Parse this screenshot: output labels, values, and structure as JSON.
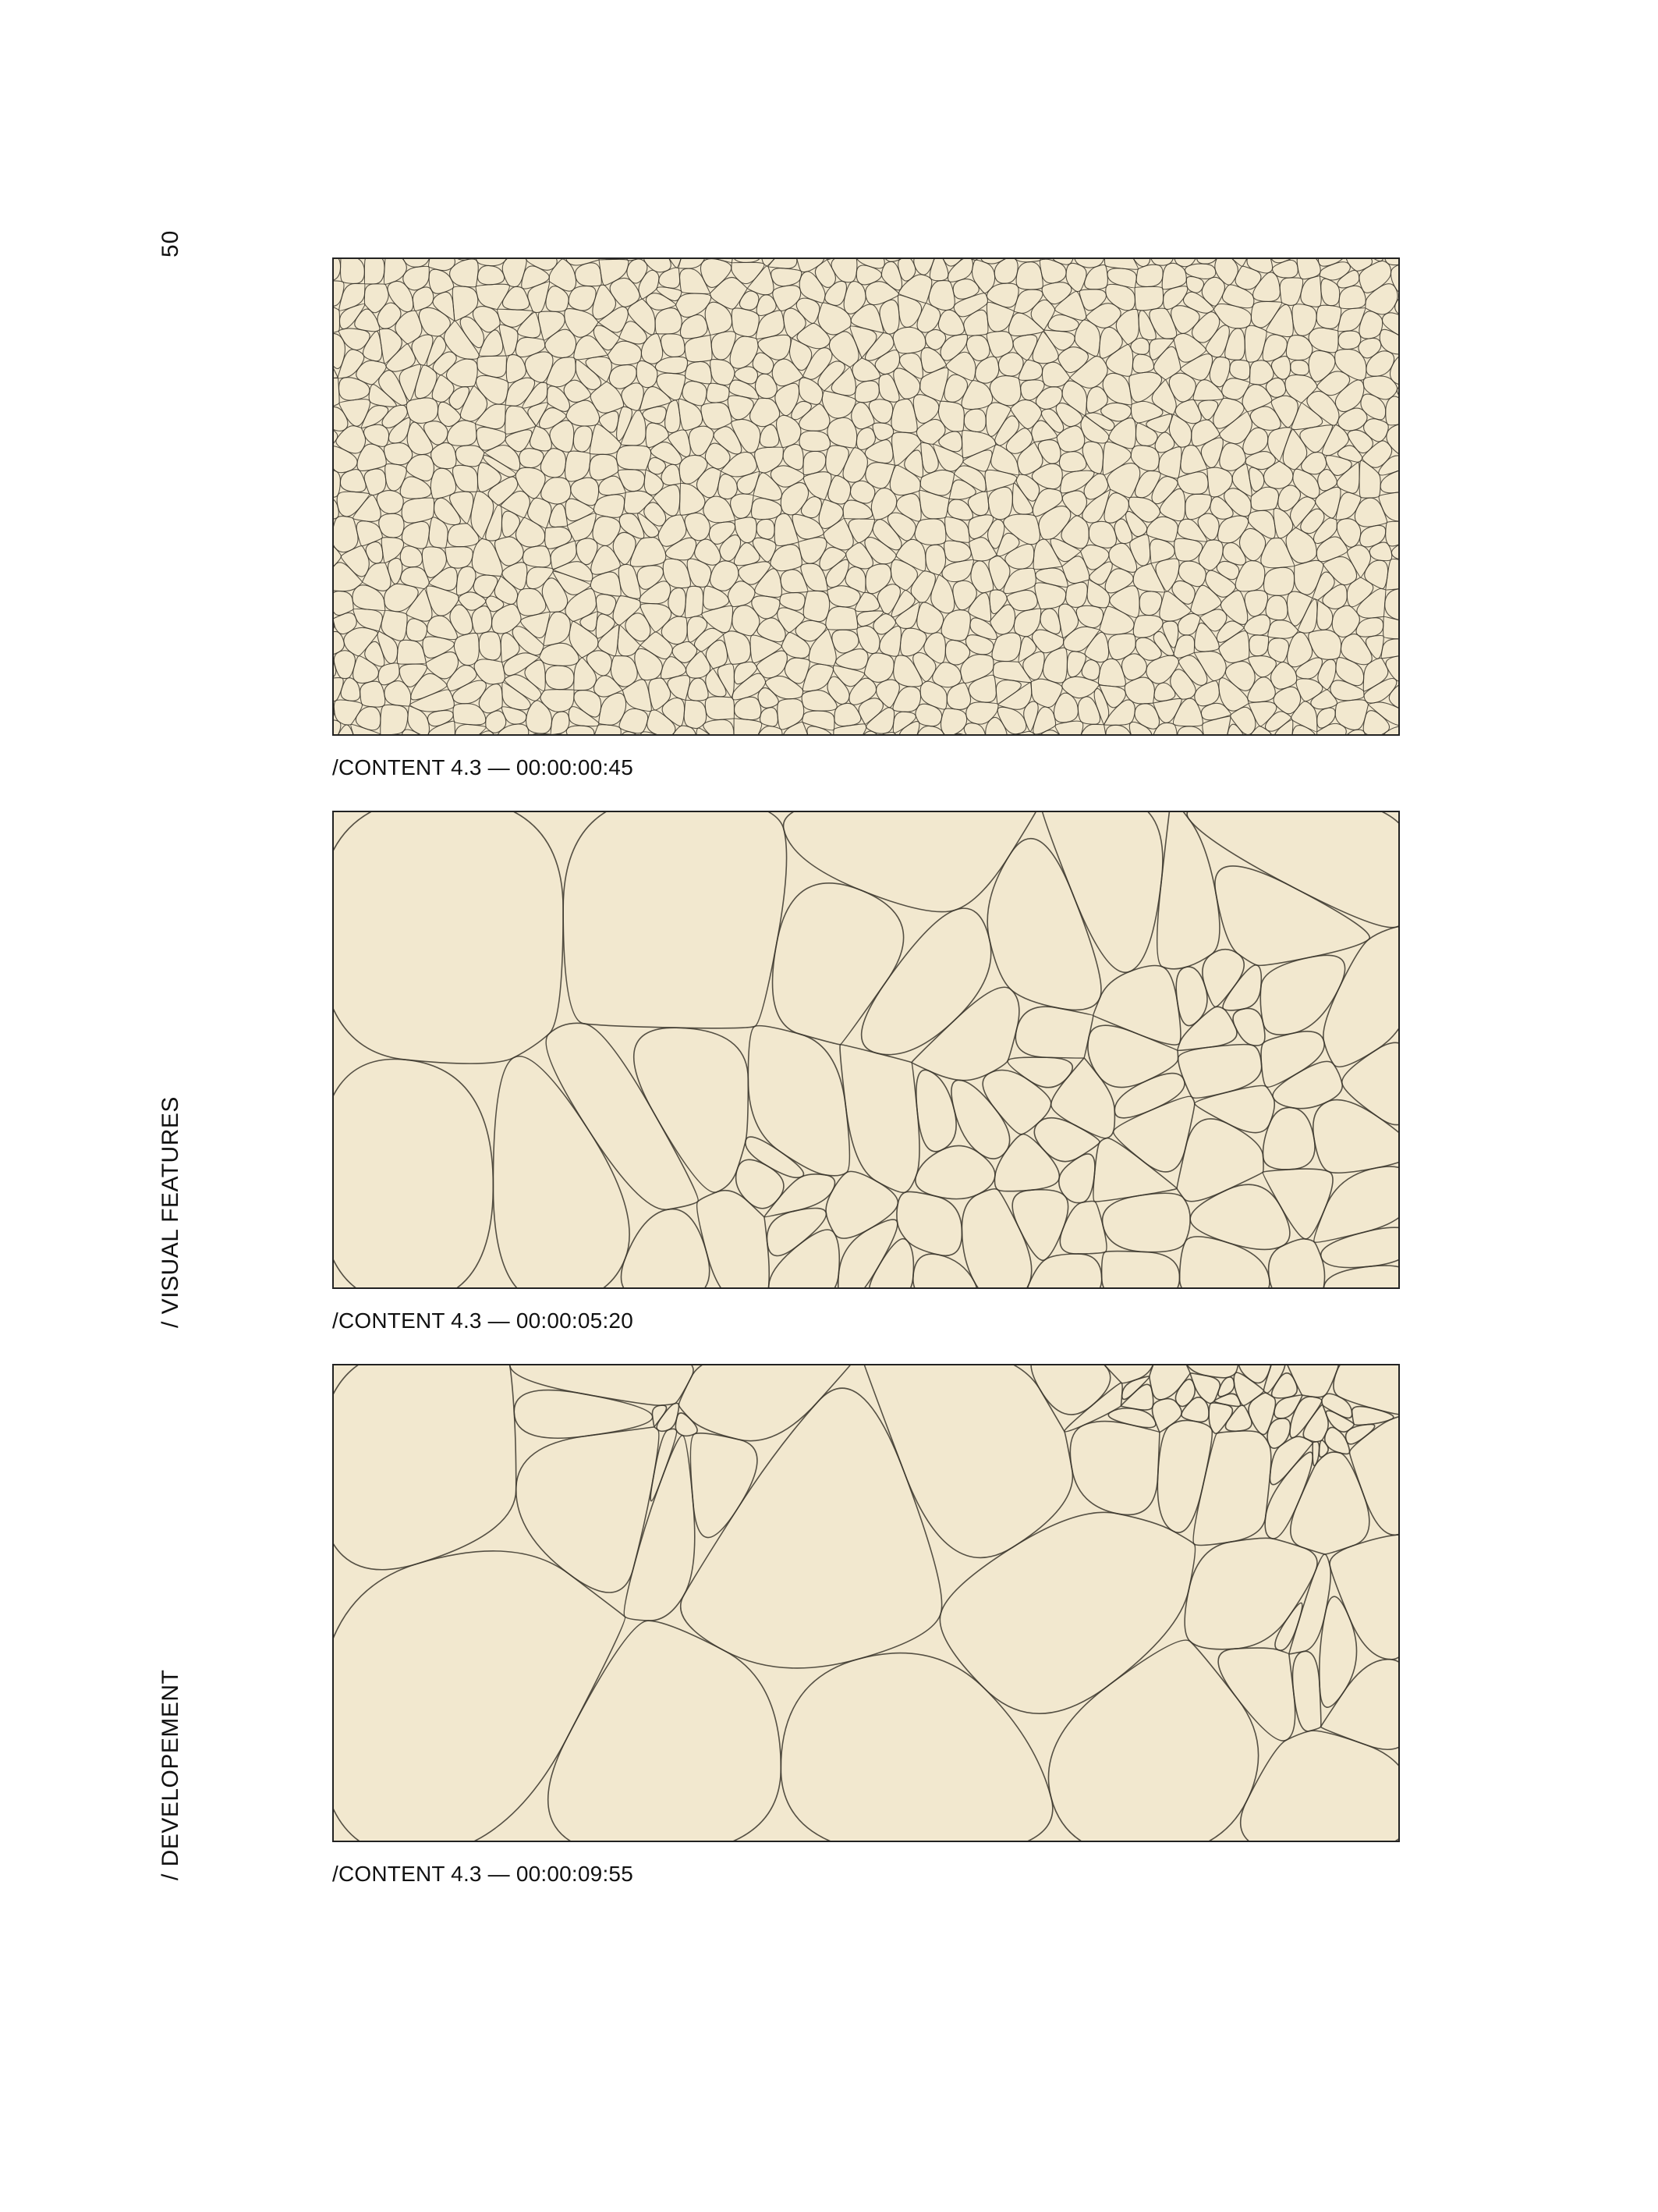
{
  "page": {
    "number": "50"
  },
  "sidebar": {
    "labels": [
      {
        "text": "/ VISUAL FEATURES"
      },
      {
        "text": "/ DEVELOPEMENT"
      }
    ]
  },
  "figures": [
    {
      "caption": "/CONTENT 4.3 — 00:00:00:45",
      "pattern": "dense"
    },
    {
      "caption": "/CONTENT 4.3 — 00:00:05:20",
      "pattern": "medium"
    },
    {
      "caption": "/CONTENT 4.3 — 00:00:09:55",
      "pattern": "sparse"
    }
  ],
  "colors": {
    "paper": "#f2e8cf",
    "line": "#3a352b",
    "frame": "#222222"
  }
}
